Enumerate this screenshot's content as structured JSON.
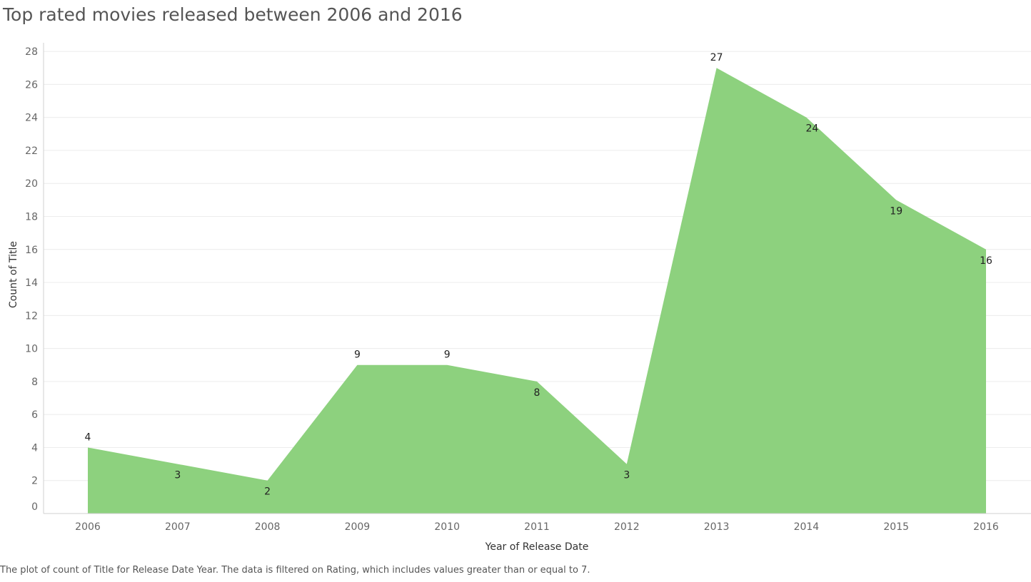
{
  "title": "Top rated movies released between 2006 and 2016",
  "caption": "The plot of count of Title for Release Date Year. The data is filtered on Rating, which includes values greater than or equal to 7.",
  "colors": {
    "area": "#8dd17e",
    "grid": "#ececec",
    "axis": "#d0d0d0"
  },
  "chart_data": {
    "type": "area",
    "x": [
      "2006",
      "2007",
      "2008",
      "2009",
      "2010",
      "2011",
      "2012",
      "2013",
      "2014",
      "2015",
      "2016"
    ],
    "values": [
      4,
      3,
      2,
      9,
      9,
      8,
      3,
      27,
      24,
      19,
      16
    ],
    "xlabel": "Year of Release Date",
    "ylabel": "Count of Title",
    "ylim": [
      0,
      28
    ],
    "yticks": [
      0,
      2,
      4,
      6,
      8,
      10,
      12,
      14,
      16,
      18,
      20,
      22,
      24,
      26,
      28
    ],
    "grid": true,
    "legend": "none",
    "data_labels": true
  }
}
